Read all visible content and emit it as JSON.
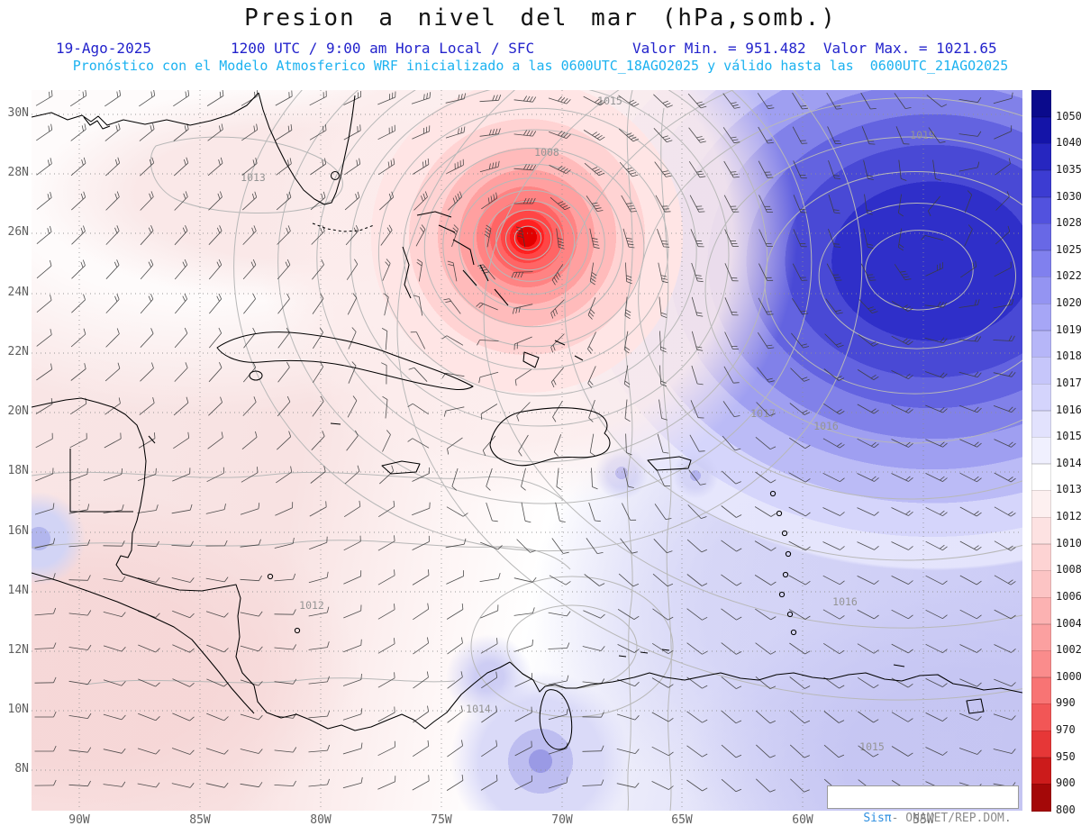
{
  "header": {
    "title": "Presion a nivel del mar (hPa,somb.)",
    "date": "19-Ago-2025",
    "time": "1200 UTC / 9:00 am Hora Local / SFC",
    "minmax": "Valor Min. = 951.482  Valor Max. = 1021.65",
    "forecast": "Pronóstico con el Modelo Atmosferico WRF inicializado a las 0600UTC_18AGO2025 y válido hasta las  0600UTC_21AGO2025"
  },
  "credit": {
    "system": "Sisπ",
    "org": "- ONAMET/REP.DOM."
  },
  "chart_data": {
    "type": "heatmap",
    "title": "Presion a nivel del mar (hPa,somb.)",
    "variable": "Sea level pressure (shaded) with wind barbs and contours",
    "units": "hPa",
    "model": "WRF",
    "init_time": "0600UTC_18AGO2025",
    "valid_time": "0600UTC_21AGO2025",
    "valor_min": 951.482,
    "valor_max": 1021.65,
    "grid": true,
    "legend_position": "right",
    "lat_range": [
      8,
      30
    ],
    "lon_range": [
      -90,
      -55
    ],
    "lat_ticks": [
      "30N",
      "28N",
      "26N",
      "24N",
      "22N",
      "20N",
      "18N",
      "16N",
      "14N",
      "12N",
      "10N",
      "8N"
    ],
    "lon_ticks": [
      "90W",
      "85W",
      "80W",
      "75W",
      "70W",
      "65W",
      "60W",
      "55W"
    ],
    "colorbar_labels": [
      1050,
      1040,
      1035,
      1030,
      1028,
      1025,
      1022,
      1020,
      1019,
      1018,
      1017,
      1016,
      1015,
      1014,
      1013,
      1012,
      1010,
      1008,
      1006,
      1004,
      1002,
      1000,
      990,
      970,
      950,
      900,
      800
    ],
    "colorbar_colors": [
      "#0a0a8c",
      "#1414a8",
      "#2626c0",
      "#3c3cd2",
      "#5252de",
      "#6868e6",
      "#8080ee",
      "#9494f2",
      "#a6a6f6",
      "#b6b6f8",
      "#c6c6fa",
      "#d4d4fc",
      "#e2e2fd",
      "#f0f0fe",
      "#ffffff",
      "#fdf0f0",
      "#fde2e2",
      "#fdd3d3",
      "#fcc4c4",
      "#fcb2b2",
      "#fba0a0",
      "#fa8c8c",
      "#f87474",
      "#f25656",
      "#e63737",
      "#cc1b1b",
      "#a40808"
    ],
    "low_center": {
      "name": "hurricane low",
      "approx_lon_lat": [
        -72.3,
        26.0
      ],
      "min_hpa": 951.482
    },
    "high_center": {
      "name": "subtropical high",
      "approx_lon_lat": [
        -56.0,
        25.5
      ],
      "max_hpa": 1021.65
    },
    "contour_labels": [
      {
        "text": "1015",
        "fx": 0.584,
        "fy": 0.02
      },
      {
        "text": "1008",
        "fx": 0.52,
        "fy": 0.091
      },
      {
        "text": "1013",
        "fx": 0.224,
        "fy": 0.126
      },
      {
        "text": "1019",
        "fx": 0.899,
        "fy": 0.068
      },
      {
        "text": "1017",
        "fx": 0.738,
        "fy": 0.454
      },
      {
        "text": "1016",
        "fx": 0.802,
        "fy": 0.471
      },
      {
        "text": "1012",
        "fx": 0.283,
        "fy": 0.72
      },
      {
        "text": "1016",
        "fx": 0.821,
        "fy": 0.715
      },
      {
        "text": "1014",
        "fx": 0.451,
        "fy": 0.864
      },
      {
        "text": "1015",
        "fx": 0.848,
        "fy": 0.916
      }
    ]
  }
}
